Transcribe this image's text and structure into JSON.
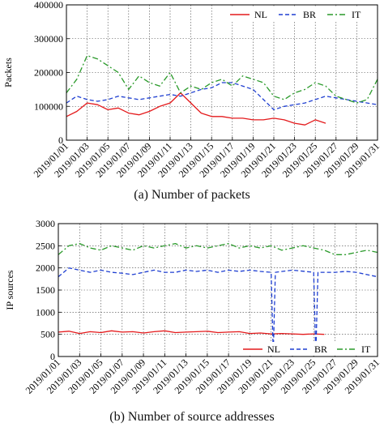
{
  "chart_data": [
    {
      "type": "line",
      "caption": "(a) Number of packets",
      "ylabel": "Packets",
      "ylim": [
        0,
        400000
      ],
      "yticks": [
        "0",
        "100000",
        "200000",
        "300000",
        "400000"
      ],
      "xlim": [
        "2019/01/01",
        "2019/01/31"
      ],
      "xticks": [
        "2019/01/01",
        "2019/01/03",
        "2019/01/05",
        "2019/01/07",
        "2019/01/09",
        "2019/01/11",
        "2019/01/13",
        "2019/01/15",
        "2019/01/17",
        "2019/01/19",
        "2019/01/21",
        "2019/01/23",
        "2019/01/25",
        "2019/01/27",
        "2019/01/29",
        "2019/01/31"
      ],
      "grid": true,
      "legend_position": "top-right",
      "series": [
        {
          "name": "NL",
          "color": "#e41a1c",
          "style": "solid",
          "x": [
            0,
            1,
            2,
            3,
            4,
            5,
            6,
            7,
            8,
            9,
            10,
            11,
            12,
            13,
            14,
            15,
            16,
            17,
            18,
            19,
            20,
            21,
            22,
            23,
            24,
            25
          ],
          "values": [
            70000,
            85000,
            110000,
            105000,
            90000,
            95000,
            80000,
            75000,
            85000,
            100000,
            110000,
            140000,
            110000,
            80000,
            70000,
            70000,
            65000,
            65000,
            60000,
            60000,
            65000,
            60000,
            50000,
            45000,
            60000,
            50000
          ]
        },
        {
          "name": "BR",
          "color": "#1f3fd1",
          "style": "dashed",
          "x": [
            0,
            1,
            2,
            3,
            4,
            5,
            6,
            7,
            8,
            9,
            10,
            11,
            12,
            13,
            14,
            15,
            16,
            17,
            18,
            19,
            20,
            21,
            22,
            23,
            24,
            25,
            26,
            27,
            28,
            29,
            30
          ],
          "values": [
            110000,
            130000,
            120000,
            115000,
            120000,
            130000,
            125000,
            120000,
            125000,
            130000,
            135000,
            130000,
            140000,
            150000,
            155000,
            170000,
            170000,
            160000,
            150000,
            120000,
            90000,
            100000,
            105000,
            110000,
            120000,
            130000,
            125000,
            120000,
            115000,
            110000,
            105000
          ]
        },
        {
          "name": "IT",
          "color": "#2a9a2a",
          "style": "dashdot",
          "x": [
            0,
            1,
            2,
            3,
            4,
            5,
            6,
            7,
            8,
            9,
            10,
            11,
            12,
            13,
            14,
            15,
            16,
            17,
            18,
            19,
            20,
            21,
            22,
            23,
            24,
            25,
            26,
            27,
            28,
            29,
            30
          ],
          "values": [
            140000,
            180000,
            250000,
            240000,
            220000,
            200000,
            150000,
            190000,
            170000,
            160000,
            200000,
            140000,
            160000,
            150000,
            170000,
            180000,
            160000,
            190000,
            180000,
            170000,
            130000,
            120000,
            140000,
            150000,
            170000,
            160000,
            130000,
            120000,
            110000,
            120000,
            180000
          ]
        }
      ]
    },
    {
      "type": "line",
      "caption": "(b) Number of source addresses",
      "ylabel": "IP sources",
      "ylim": [
        0,
        3000
      ],
      "yticks": [
        "0",
        "500",
        "1000",
        "1500",
        "2000",
        "2500",
        "3000"
      ],
      "xlim": [
        "2019/01/01",
        "2019/01/31"
      ],
      "xticks": [
        "2019/01/01",
        "2019/01/03",
        "2019/01/05",
        "2019/01/07",
        "2019/01/09",
        "2019/01/11",
        "2019/01/13",
        "2019/01/15",
        "2019/01/17",
        "2019/01/19",
        "2019/01/21",
        "2019/01/23",
        "2019/01/25",
        "2019/01/27",
        "2019/01/29",
        "2019/01/31"
      ],
      "grid": true,
      "legend_position": "bottom",
      "series": [
        {
          "name": "NL",
          "color": "#e41a1c",
          "style": "solid",
          "x": [
            0,
            1,
            2,
            3,
            4,
            5,
            6,
            7,
            8,
            9,
            10,
            11,
            12,
            13,
            14,
            15,
            16,
            17,
            18,
            19,
            20,
            21,
            22,
            23,
            24,
            25
          ],
          "values": [
            550,
            570,
            520,
            560,
            540,
            580,
            550,
            560,
            530,
            560,
            580,
            540,
            550,
            560,
            570,
            540,
            550,
            560,
            520,
            530,
            510,
            520,
            510,
            500,
            510,
            500
          ]
        },
        {
          "name": "BR",
          "color": "#1f3fd1",
          "style": "dashed",
          "x": [
            0,
            1,
            2,
            3,
            4,
            5,
            6,
            7,
            8,
            9,
            10,
            11,
            12,
            13,
            14,
            15,
            16,
            17,
            18,
            19,
            20,
            20.2,
            20.4,
            22,
            24.0,
            24.2,
            24.4,
            26,
            27,
            28,
            29,
            30
          ],
          "values": [
            1800,
            2000,
            1950,
            1900,
            1950,
            1900,
            1880,
            1850,
            1900,
            1950,
            1900,
            1900,
            1950,
            1920,
            1950,
            1900,
            1950,
            1920,
            1950,
            1920,
            1900,
            50,
            1900,
            1950,
            1900,
            30,
            1900,
            1900,
            1920,
            1900,
            1850,
            1800
          ]
        },
        {
          "name": "IT",
          "color": "#2a9a2a",
          "style": "dashdot",
          "x": [
            0,
            1,
            2,
            3,
            4,
            5,
            6,
            7,
            8,
            9,
            10,
            11,
            12,
            13,
            14,
            15,
            16,
            17,
            18,
            19,
            20,
            21,
            22,
            23,
            24,
            25,
            26,
            27,
            28,
            29,
            30
          ],
          "values": [
            2300,
            2500,
            2550,
            2450,
            2400,
            2500,
            2450,
            2400,
            2500,
            2450,
            2500,
            2550,
            2450,
            2500,
            2450,
            2500,
            2550,
            2450,
            2500,
            2450,
            2500,
            2400,
            2450,
            2500,
            2450,
            2400,
            2300,
            2300,
            2350,
            2400,
            2350
          ]
        }
      ]
    }
  ]
}
